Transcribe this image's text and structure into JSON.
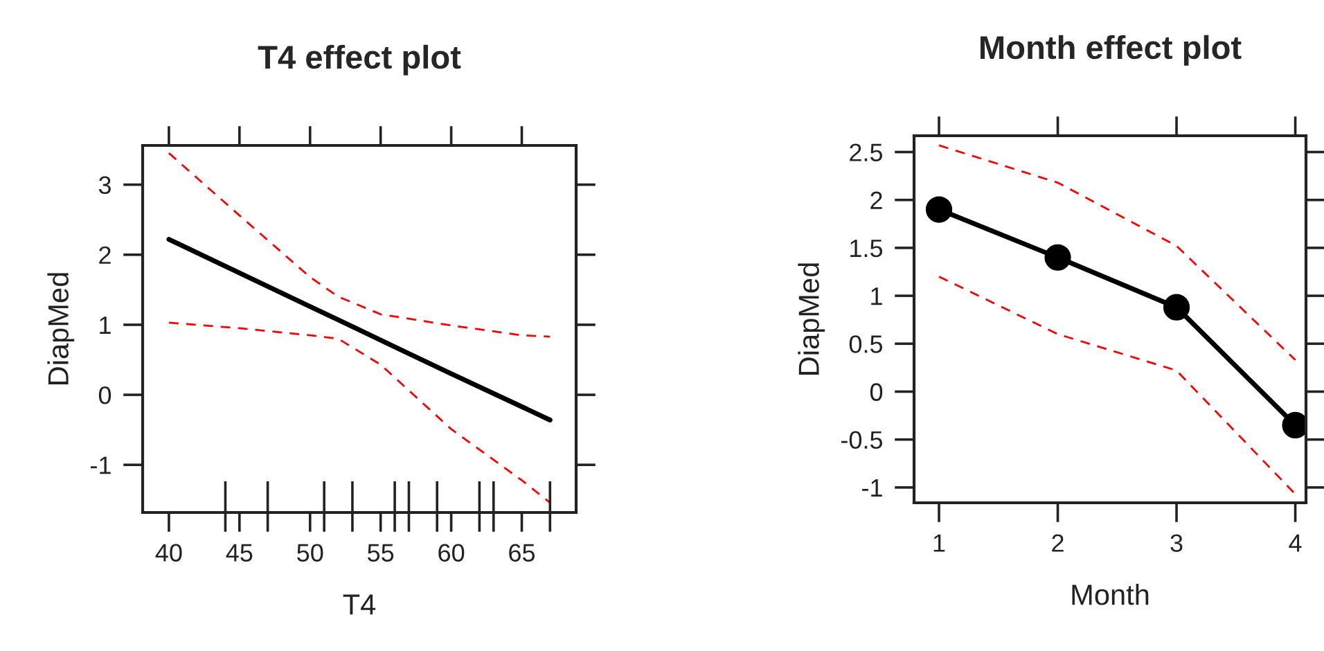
{
  "chart_data": [
    {
      "type": "line",
      "title": "T4 effect plot",
      "xlabel": "T4",
      "ylabel": "DiapMed",
      "xlim": [
        38.14,
        68.85
      ],
      "ylim": [
        -1.68,
        3.56
      ],
      "xticks": [
        40,
        {
          "value": 44,
          "label": null
        },
        45,
        {
          "value": 47,
          "label": null
        },
        50,
        {
          "value": 51,
          "label": null
        },
        {
          "value": 53,
          "label": null
        },
        55,
        {
          "value": 56,
          "label": null
        },
        {
          "value": 57,
          "label": null
        },
        {
          "value": 59,
          "label": null
        },
        60,
        {
          "value": 62,
          "label": null
        },
        {
          "value": 63,
          "label": null
        },
        65,
        {
          "value": 67,
          "label": null
        }
      ],
      "yticks": [
        -1,
        0,
        1,
        2,
        3
      ],
      "grid": false,
      "legend": false,
      "series": [
        {
          "color": "#000000",
          "marker": "none",
          "line_style": "solid",
          "x": [
            40,
            45,
            50,
            52,
            55,
            60,
            65,
            67
          ],
          "values": [
            2.22,
            1.74,
            1.26,
            1.07,
            0.78,
            0.3,
            -0.17,
            -0.36
          ]
        },
        {
          "color": "#ff0000",
          "marker": "none",
          "line_style": "dashed",
          "x": [
            40,
            45,
            50,
            52,
            55,
            60,
            65,
            67
          ],
          "values": [
            1.03,
            0.95,
            0.85,
            0.8,
            0.43,
            -0.49,
            -1.22,
            -1.54
          ]
        },
        {
          "color": "#ff0000",
          "marker": "none",
          "line_style": "dashed",
          "x": [
            40,
            45,
            50,
            52,
            55,
            60,
            65,
            67
          ],
          "values": [
            3.45,
            2.56,
            1.68,
            1.4,
            1.15,
            0.99,
            0.85,
            0.83
          ]
        }
      ]
    },
    {
      "type": "line",
      "title": "Month effect plot",
      "xlabel": "Month",
      "ylabel": "DiapMed",
      "xlim": [
        0.79,
        4.09
      ],
      "ylim": [
        -1.16,
        2.67
      ],
      "xticks": [
        1,
        2,
        3,
        4
      ],
      "yticks": [
        -1,
        {
          "value": -0.5,
          "label": "-0.5"
        },
        0,
        0.5,
        1,
        1.5,
        2,
        2.5
      ],
      "grid": false,
      "legend": false,
      "series": [
        {
          "color": "#000000",
          "marker": "circle",
          "line_style": "solid",
          "x": [
            1,
            2,
            3,
            4
          ],
          "values": [
            1.9,
            1.4,
            0.88,
            -0.35
          ]
        },
        {
          "color": "#ff0000",
          "marker": "none",
          "line_style": "dashed",
          "x": [
            1,
            2,
            3,
            4
          ],
          "values": [
            1.2,
            0.6,
            0.22,
            -1.07
          ]
        },
        {
          "color": "#ff0000",
          "marker": "none",
          "line_style": "dashed",
          "x": [
            1,
            2,
            3,
            4
          ],
          "values": [
            2.57,
            2.18,
            1.52,
            0.33
          ]
        }
      ]
    }
  ]
}
